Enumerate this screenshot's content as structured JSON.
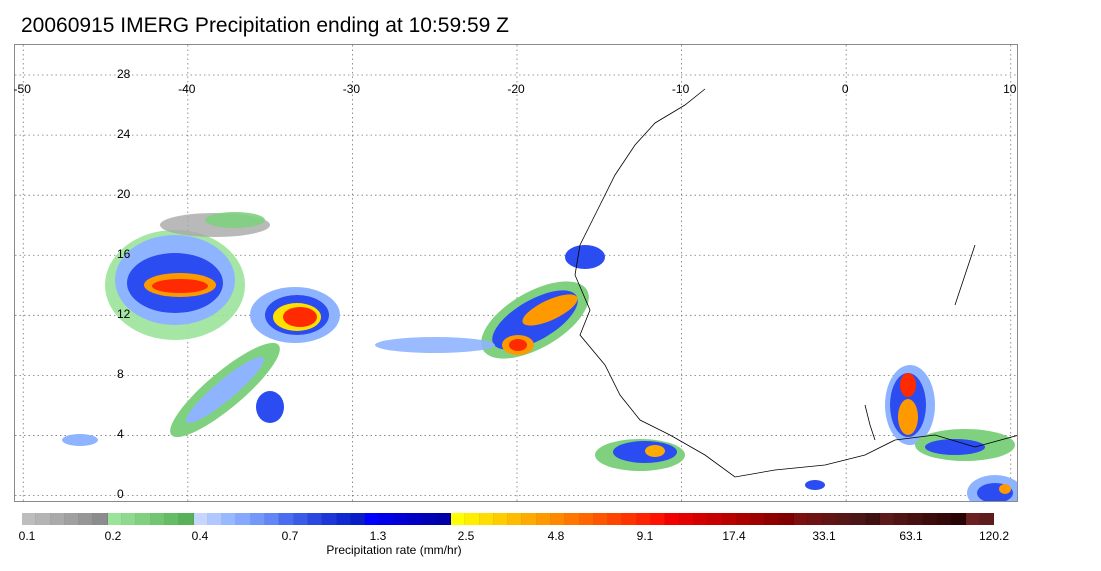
{
  "title": "20060915 IMERG Precipitation ending at 10:59:59 Z",
  "map": {
    "lon_labels": [
      "-50",
      "-40",
      "-30",
      "-20",
      "-10",
      "0",
      "10"
    ],
    "lat_labels": [
      "28",
      "24",
      "20",
      "16",
      "12",
      "8",
      "4",
      "0"
    ],
    "lon_values": [
      -50,
      -40,
      -30,
      -20,
      -10,
      0,
      10
    ],
    "lat_values": [
      28,
      24,
      20,
      16,
      12,
      8,
      4,
      0
    ],
    "extent": {
      "lon": [
        -50.5,
        10.5
      ],
      "lat": [
        -0.5,
        30.0
      ]
    },
    "gridlines": "dotted"
  },
  "colorbar": {
    "title": "Precipitation rate (mm/hr)",
    "tick_labels": [
      "0.1",
      "0.2",
      "0.4",
      "0.7",
      "1.3",
      "2.5",
      "4.8",
      "9.1",
      "17.4",
      "33.1",
      "63.1",
      "120.2"
    ],
    "colors": [
      "#bdbdbd",
      "#b4b4b4",
      "#aaaaaa",
      "#a0a0a0",
      "#969696",
      "#8c8c8c",
      "#9be39b",
      "#8ed98e",
      "#80d080",
      "#72c672",
      "#64bc64",
      "#58b058",
      "#c6d6ff",
      "#b0c8ff",
      "#98b8ff",
      "#86a8ff",
      "#7498fa",
      "#6286f5",
      "#4a6cf0",
      "#3a5ae8",
      "#2a48e0",
      "#1c36d8",
      "#1028d0",
      "#0a1cc6",
      "#0000ff",
      "#0000e8",
      "#0000d6",
      "#0000c4",
      "#0000b4",
      "#0000a6",
      "#ffff00",
      "#ffee00",
      "#ffdd00",
      "#ffcc00",
      "#ffbb00",
      "#ffaa00",
      "#ff9900",
      "#ff8800",
      "#ff7700",
      "#ff6600",
      "#ff5500",
      "#ff4400",
      "#ff3300",
      "#ff2200",
      "#ff1100",
      "#f00000",
      "#e20000",
      "#d40000",
      "#c60000",
      "#b80000",
      "#aa0000",
      "#9c0000",
      "#8e0000",
      "#800000",
      "#7a1010",
      "#6e1212",
      "#621414",
      "#561616",
      "#4a1616",
      "#401010",
      "#5a1a1a",
      "#501414",
      "#461010",
      "#3c0c0c",
      "#320808",
      "#280404",
      "#6a2020",
      "#5e1c1c",
      "#521818"
    ]
  },
  "precip_legend_colors": {
    "trace": "#a8a8a8",
    "light": "#7fd07f",
    "lightblue": "#8fb4ff",
    "blue": "#2a4cf0",
    "darkblue": "#0000d0",
    "yellow": "#ffe000",
    "orange": "#ff9900",
    "red": "#ff2a00",
    "darkred": "#a00000"
  }
}
